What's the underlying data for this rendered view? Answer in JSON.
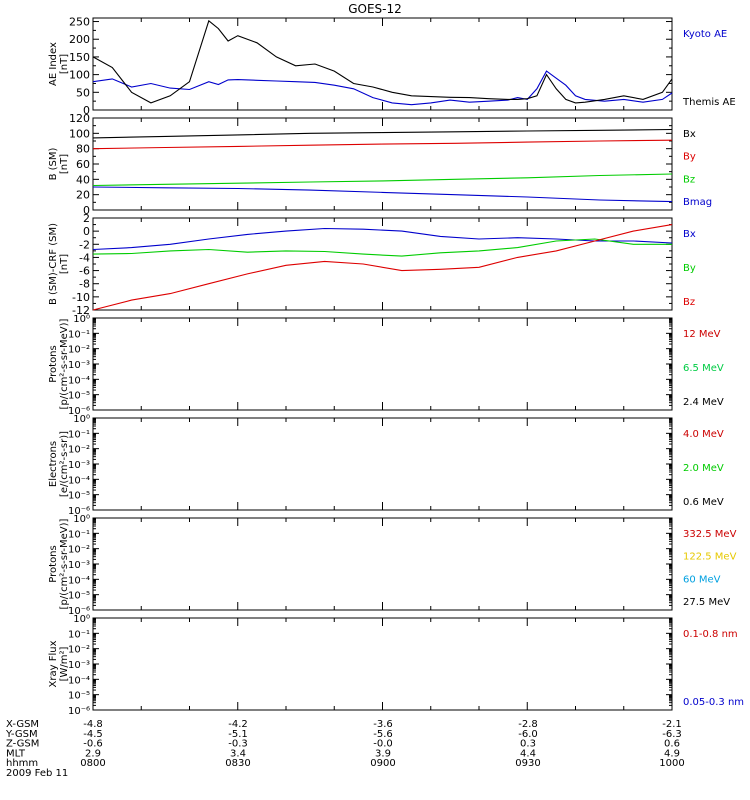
{
  "title": "GOES-12",
  "chart_data": [
    {
      "id": "ae",
      "type": "line",
      "ylabel": [
        "AE Index",
        "[nT]"
      ],
      "ylim": [
        0,
        260
      ],
      "yticks": [
        0,
        50,
        100,
        150,
        200,
        250
      ],
      "ytick_labels": [
        "0",
        "50",
        "100",
        "150",
        "200",
        "250"
      ],
      "x": [
        "0800",
        "0804",
        "0808",
        "0812",
        "0816",
        "0820",
        "0824",
        "0826",
        "0828",
        "0830",
        "0834",
        "0838",
        "0842",
        "0846",
        "0850",
        "0854",
        "0858",
        "0902",
        "0906",
        "0910",
        "0914",
        "0918",
        "0922",
        "0926",
        "0928",
        "0930",
        "0932",
        "0934",
        "0936",
        "0938",
        "0940",
        "0942",
        "0946",
        "0950",
        "0954",
        "0958",
        "1000"
      ],
      "series": [
        {
          "name": "Kyoto AE",
          "color": "#0000cc",
          "values": [
            80,
            88,
            65,
            75,
            62,
            58,
            80,
            72,
            85,
            86,
            84,
            82,
            80,
            78,
            70,
            60,
            35,
            20,
            15,
            20,
            28,
            22,
            25,
            28,
            35,
            30,
            60,
            110,
            90,
            70,
            40,
            30,
            25,
            30,
            22,
            30,
            48
          ]
        },
        {
          "name": "Themis AE",
          "color": "#000000",
          "values": [
            150,
            120,
            50,
            20,
            40,
            80,
            252,
            230,
            195,
            210,
            190,
            150,
            125,
            130,
            110,
            75,
            65,
            50,
            40,
            38,
            36,
            35,
            32,
            30,
            30,
            32,
            40,
            100,
            60,
            30,
            20,
            22,
            30,
            40,
            30,
            50,
            88
          ]
        }
      ]
    },
    {
      "id": "bsm",
      "type": "line",
      "ylabel": [
        "B (SM)",
        "[nT]"
      ],
      "ylim": [
        0,
        120
      ],
      "yticks": [
        0,
        20,
        40,
        60,
        80,
        100,
        120
      ],
      "ytick_labels": [
        "0",
        "20",
        "40",
        "60",
        "80",
        "100",
        "120"
      ],
      "x": [
        "0800",
        "0815",
        "0830",
        "0845",
        "0900",
        "0915",
        "0930",
        "0945",
        "1000"
      ],
      "series": [
        {
          "name": "Bx",
          "color": "#000000",
          "values": [
            94,
            96,
            98,
            100,
            101,
            102,
            103,
            104,
            105
          ]
        },
        {
          "name": "By",
          "color": "#dd0000",
          "values": [
            80,
            81.5,
            83,
            84.5,
            86,
            87,
            88.5,
            90,
            91
          ]
        },
        {
          "name": "Bz",
          "color": "#00cc00",
          "values": [
            32,
            33.5,
            35,
            36.5,
            38,
            40,
            42,
            45,
            47
          ]
        },
        {
          "name": "Bmag",
          "color": "#0000cc",
          "values": [
            30,
            29,
            28,
            26,
            23,
            20,
            17,
            13,
            11
          ]
        }
      ]
    },
    {
      "id": "bdiff",
      "type": "line",
      "ylabel": [
        "B (SM)-CRF (SM)",
        "[nT]"
      ],
      "ylim": [
        -12,
        2
      ],
      "yticks": [
        -12,
        -10,
        -8,
        -6,
        -4,
        -2,
        0,
        2
      ],
      "ytick_labels": [
        "-12",
        "-10",
        "-8",
        "-6",
        "-4",
        "-2",
        "0",
        "2"
      ],
      "x": [
        "0800",
        "0808",
        "0816",
        "0824",
        "0832",
        "0840",
        "0848",
        "0856",
        "0904",
        "0912",
        "0920",
        "0928",
        "0936",
        "0944",
        "0952",
        "1000"
      ],
      "series": [
        {
          "name": "Bx",
          "color": "#0000cc",
          "values": [
            -2.8,
            -2.5,
            -2.0,
            -1.2,
            -0.5,
            0.0,
            0.4,
            0.3,
            0.0,
            -0.8,
            -1.2,
            -1.0,
            -1.2,
            -1.5,
            -1.5,
            -1.8
          ]
        },
        {
          "name": "By",
          "color": "#00cc00",
          "values": [
            -3.5,
            -3.4,
            -3.0,
            -2.8,
            -3.2,
            -3.0,
            -3.1,
            -3.5,
            -3.8,
            -3.3,
            -3.0,
            -2.5,
            -1.5,
            -1.2,
            -2.0,
            -2.0
          ]
        },
        {
          "name": "Bz",
          "color": "#dd0000",
          "values": [
            -12.0,
            -10.5,
            -9.5,
            -8.0,
            -6.5,
            -5.2,
            -4.6,
            -5.0,
            -6.0,
            -5.8,
            -5.5,
            -4.0,
            -3.0,
            -1.5,
            0.0,
            1.0
          ]
        }
      ]
    },
    {
      "id": "protons",
      "type": "line",
      "ylabel": [
        "Protons",
        "[p/(cm²-s-sr-MeV)]"
      ],
      "ylim": [
        -6,
        0
      ],
      "log_scale": true,
      "yticks": [
        -6,
        -5,
        -4,
        -3,
        -2,
        -1,
        0
      ],
      "ytick_labels": [
        "10⁻⁶",
        "10⁻⁵",
        "10⁻⁴",
        "10⁻³",
        "10⁻²",
        "10⁻¹",
        "10⁰"
      ],
      "series": [
        {
          "name": "12 MeV",
          "color": "#cc0000",
          "values": []
        },
        {
          "name": "6.5 MeV",
          "color": "#00cc44",
          "values": []
        },
        {
          "name": "2.4 MeV",
          "color": "#000000",
          "values": []
        }
      ]
    },
    {
      "id": "electrons",
      "type": "line",
      "ylabel": [
        "Electrons",
        "[e/(cm²-s-sr)]"
      ],
      "ylim": [
        -6,
        0
      ],
      "log_scale": true,
      "yticks": [
        -6,
        -5,
        -4,
        -3,
        -2,
        -1,
        0
      ],
      "ytick_labels": [
        "10⁻⁶",
        "10⁻⁵",
        "10⁻⁴",
        "10⁻³",
        "10⁻²",
        "10⁻¹",
        "10⁰"
      ],
      "series": [
        {
          "name": "4.0 MeV",
          "color": "#cc0000",
          "values": []
        },
        {
          "name": "2.0 MeV",
          "color": "#00cc00",
          "values": []
        },
        {
          "name": "0.6 MeV",
          "color": "#000000",
          "values": []
        }
      ]
    },
    {
      "id": "protons_high",
      "type": "line",
      "ylabel": [
        "Protons",
        "[p/(cm²-s-sr-MeV)]"
      ],
      "ylim": [
        -6,
        0
      ],
      "log_scale": true,
      "yticks": [
        -6,
        -5,
        -4,
        -3,
        -2,
        -1,
        0
      ],
      "ytick_labels": [
        "10⁻⁶",
        "10⁻⁵",
        "10⁻⁴",
        "10⁻³",
        "10⁻²",
        "10⁻¹",
        "10⁰"
      ],
      "series": [
        {
          "name": "332.5 MeV",
          "color": "#cc0000",
          "values": []
        },
        {
          "name": "122.5 MeV",
          "color": "#e6c800",
          "values": []
        },
        {
          "name": "60 MeV",
          "color": "#00a0e0",
          "values": []
        },
        {
          "name": "27.5 MeV",
          "color": "#000000",
          "values": []
        }
      ]
    },
    {
      "id": "xray",
      "type": "line",
      "ylabel": [
        "Xray Flux",
        "[W/m²]"
      ],
      "ylim": [
        -6,
        0
      ],
      "log_scale": true,
      "yticks": [
        -6,
        -5,
        -4,
        -3,
        -2,
        -1,
        0
      ],
      "ytick_labels": [
        "10⁻⁶",
        "10⁻⁵",
        "10⁻⁴",
        "10⁻³",
        "10⁻²",
        "10⁻¹",
        "10⁰"
      ],
      "series": [
        {
          "name": "0.1-0.8 nm",
          "color": "#cc0000",
          "values": []
        },
        {
          "name": "0.05-0.3 nm",
          "color": "#0000cc",
          "values": []
        }
      ]
    }
  ],
  "x_axis": {
    "range": [
      "0800",
      "1000"
    ],
    "rows": [
      {
        "label": "X-GSM",
        "values": [
          "-4.8",
          "-4.2",
          "-3.6",
          "-2.8",
          "-2.1"
        ]
      },
      {
        "label": "Y-GSM",
        "values": [
          "-4.5",
          "-5.1",
          "-5.6",
          "-6.0",
          "-6.3"
        ]
      },
      {
        "label": "Z-GSM",
        "values": [
          "-0.6",
          "-0.3",
          "-0.0",
          "0.3",
          "0.6"
        ]
      },
      {
        "label": "MLT",
        "values": [
          "2.9",
          "3.4",
          "3.9",
          "4.4",
          "4.9"
        ]
      },
      {
        "label": "hhmm",
        "values": [
          "0800",
          "0830",
          "0900",
          "0930",
          "1000"
        ]
      }
    ],
    "date": "2009 Feb 11"
  }
}
